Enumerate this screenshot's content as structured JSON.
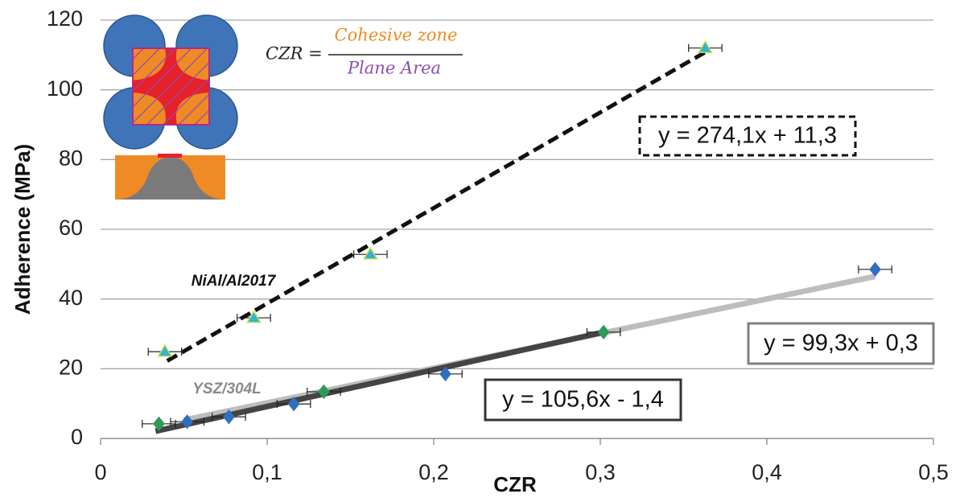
{
  "chart_data": {
    "type": "scatter",
    "xlabel": "CZR",
    "ylabel": "Adherence (MPa)",
    "xlim": [
      0,
      0.5
    ],
    "ylim": [
      0,
      120
    ],
    "xticks": [
      0,
      {
        "value": 0.1,
        "label": "0,1"
      },
      {
        "value": 0.2,
        "label": "0,2"
      },
      {
        "value": 0.3,
        "label": "0,3"
      },
      {
        "value": 0.4,
        "label": "0,4"
      },
      {
        "value": 0.5,
        "label": "0,5"
      }
    ],
    "yticks": [
      0,
      20,
      40,
      60,
      80,
      100,
      120
    ],
    "grid": true,
    "series": [
      {
        "name": "NiAl/Al2017",
        "marker": "triangle",
        "colors": [
          "#2bb5d6",
          "#2bb5d6",
          "#2bb5d6",
          "#2bb5d6"
        ],
        "x": [
          0.0386,
          0.092,
          0.162,
          0.363
        ],
        "values": [
          24.9,
          34.6,
          52.8,
          112
        ],
        "xerr": [
          0.01,
          0.01,
          0.01,
          0.01
        ]
      },
      {
        "name": "YSZ/304L",
        "marker": "diamond",
        "colors": [
          "#2e9a57",
          "#2f6fbf",
          "#2f6fbf",
          "#2f6fbf",
          "#2e9a57",
          "#2f6fbf",
          "#2e9a57",
          "#2f6fbf"
        ],
        "x": [
          0.035,
          0.052,
          0.077,
          0.116,
          0.134,
          0.207,
          0.302,
          0.465
        ],
        "values": [
          4.2,
          4.8,
          6.2,
          9.9,
          13.4,
          18.5,
          30.5,
          48.5
        ],
        "xerr": [
          0.01,
          0.01,
          0.01,
          0.01,
          0.01,
          0.01,
          0.01,
          0.01
        ]
      }
    ],
    "trendlines": [
      {
        "label": "y = 274,1x + 11,3",
        "slope": 274.1,
        "intercept": 11.3,
        "xrange": [
          0.04,
          0.365
        ],
        "color": "#111111",
        "dashed": true
      },
      {
        "label": "y = 99,3x + 0,3",
        "slope": 99.3,
        "intercept": 0.3,
        "xrange": [
          0.05,
          0.465
        ],
        "color": "#bdbdbd",
        "dashed": false
      },
      {
        "label": "y = 105,6x - 1,4",
        "slope": 105.6,
        "intercept": -1.4,
        "xrange": [
          0.033,
          0.302
        ],
        "color": "#444444",
        "dashed": false
      }
    ],
    "inset": {
      "lhs": "CZR =",
      "numerator": "Cohesive zone",
      "denominator": "Plane Area"
    }
  }
}
